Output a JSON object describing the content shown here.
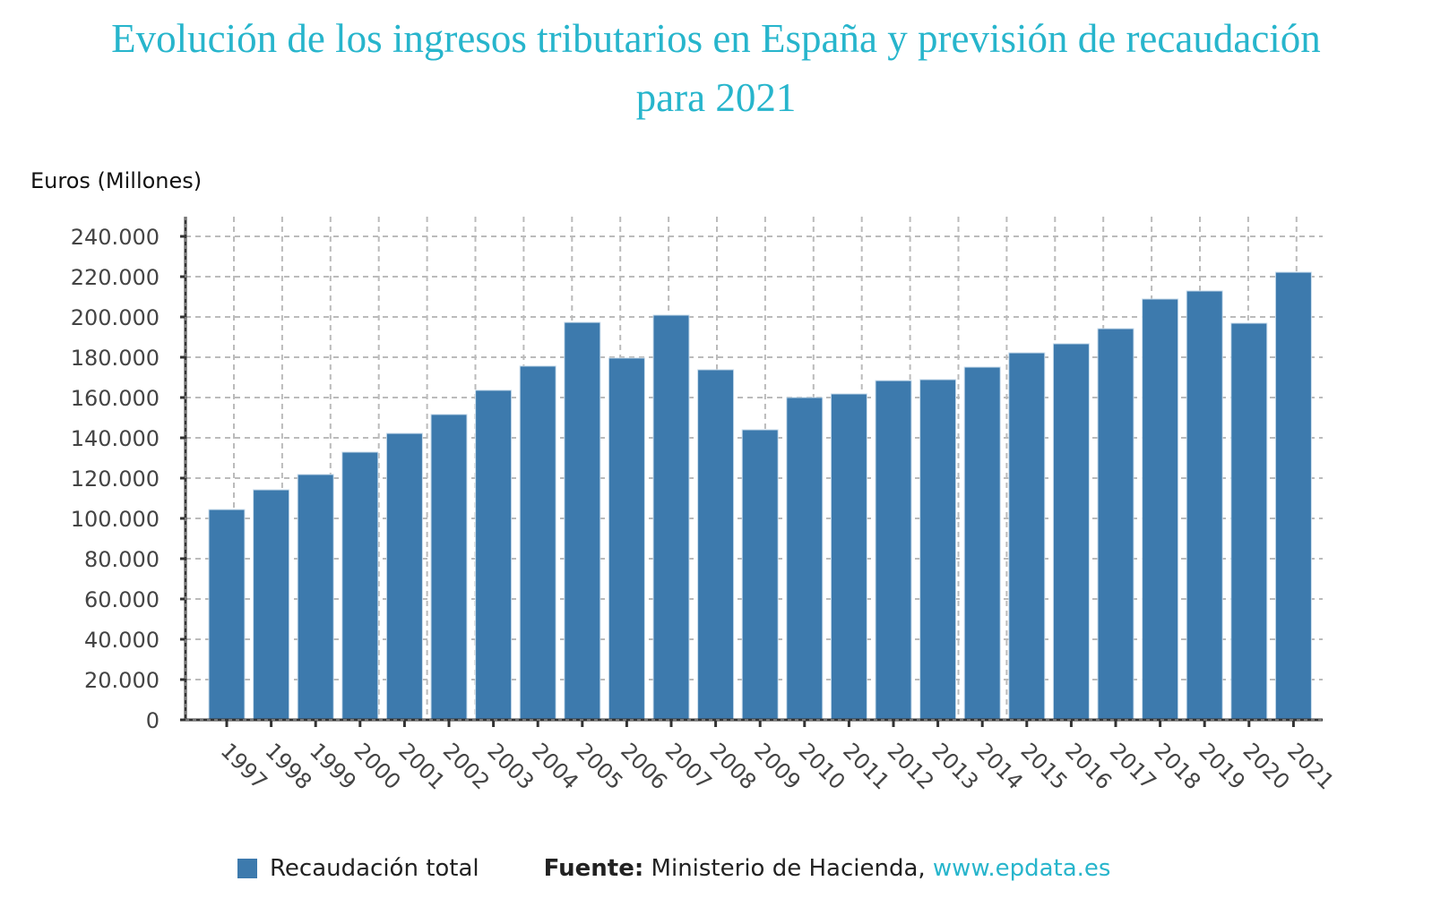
{
  "title_lines": [
    "Evolución de los ingresos tributarios en España y previsión de recaudación",
    "para 2021"
  ],
  "colors": {
    "title": "#27b5cc",
    "bar": "#3d7aad",
    "link": "#27b5cc",
    "grid": "#bbbbbb",
    "axis": "#333333"
  },
  "footer": {
    "legend_label": "Recaudación total",
    "source_prefix": "Fuente:",
    "source_text": "Ministerio de Hacienda,",
    "source_link": "www.epdata.es"
  },
  "chart_data": {
    "type": "bar",
    "title": "Evolución de los ingresos tributarios en España y previsión de recaudación para 2021",
    "xlabel": "",
    "ylabel": "Euros (Millones)",
    "ylim": [
      0,
      240000
    ],
    "yticks": [
      0,
      20000,
      40000,
      60000,
      80000,
      100000,
      120000,
      140000,
      160000,
      180000,
      200000,
      220000,
      240000
    ],
    "ytick_labels": [
      "0",
      "20.000",
      "40.000",
      "60.000",
      "80.000",
      "100.000",
      "120.000",
      "140.000",
      "160.000",
      "180.000",
      "200.000",
      "220.000",
      "240.000"
    ],
    "grid": true,
    "legend": "bottom",
    "categories": [
      "1997",
      "1998",
      "1999",
      "2000",
      "2001",
      "2002",
      "2003",
      "2004",
      "2005",
      "2006",
      "2007",
      "2008",
      "2009",
      "2010",
      "2011",
      "2012",
      "2013",
      "2014",
      "2015",
      "2016",
      "2017",
      "2018",
      "2019",
      "2020",
      "2021"
    ],
    "series": [
      {
        "name": "Recaudación total",
        "values": [
          104400,
          114200,
          121800,
          132900,
          142200,
          151600,
          163600,
          175600,
          197300,
          179600,
          200900,
          173800,
          144000,
          160000,
          161800,
          168400,
          168900,
          175100,
          182200,
          186700,
          194200,
          208900,
          212900,
          196900,
          222200
        ]
      }
    ]
  }
}
